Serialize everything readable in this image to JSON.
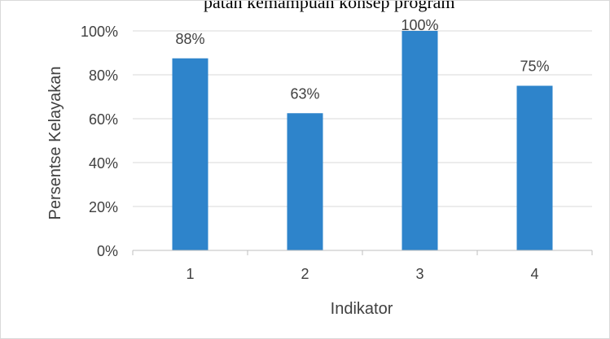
{
  "chart_data": {
    "type": "bar",
    "title": "",
    "title_fragment": "patan kemampuan konsep program",
    "xlabel": "Indikator",
    "ylabel": "Persentse Kelayakan",
    "categories": [
      "1",
      "2",
      "3",
      "4"
    ],
    "values": [
      0.875,
      0.625,
      1.0,
      0.75
    ],
    "data_labels": [
      "88%",
      "63%",
      "100%",
      "75%"
    ],
    "ylim": [
      0,
      1
    ],
    "yticks": [
      0,
      0.2,
      0.4,
      0.6,
      0.8,
      1.0
    ],
    "ytick_labels": [
      "0%",
      "20%",
      "40%",
      "60%",
      "80%",
      "100%"
    ],
    "grid": true,
    "legend": "none",
    "bar_color": "#2E84CB",
    "grid_color": "#D9D9D9",
    "text_color": "#404040"
  }
}
